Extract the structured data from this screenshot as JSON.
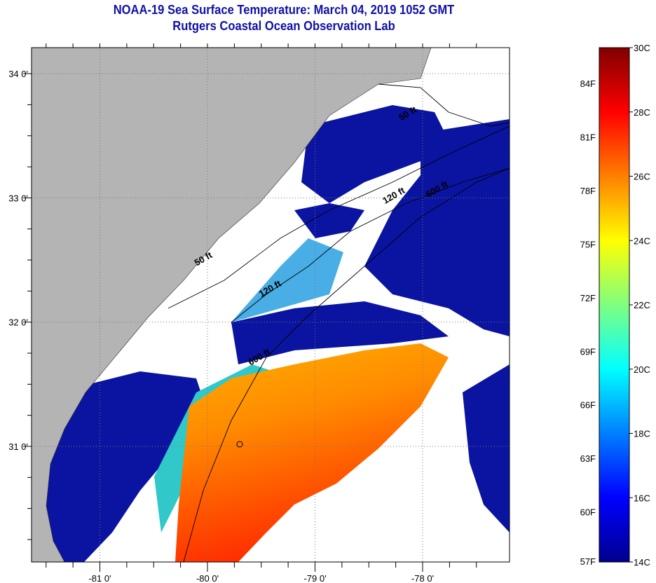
{
  "header": {
    "title": "NOAA-19 Sea Surface Temperature:  March 04, 2019 1052 GMT",
    "subtitle": "Rutgers Coastal Ocean Observation Lab"
  },
  "map": {
    "lon_range": [
      -81.64,
      -77.2
    ],
    "lat_range": [
      30.2,
      34.2
    ],
    "lon_ticks": [
      {
        "value": -81,
        "label": "-81 0'"
      },
      {
        "value": -80,
        "label": "-80 0'"
      },
      {
        "value": -79,
        "label": "-79 0'"
      },
      {
        "value": -78,
        "label": "-78 0'"
      }
    ],
    "lat_ticks": [
      {
        "value": 34,
        "label": "34 0'"
      },
      {
        "value": 33,
        "label": "33 0'"
      },
      {
        "value": 32,
        "label": "32 0'"
      },
      {
        "value": 31,
        "label": "31 0'"
      }
    ],
    "contour_labels": [
      {
        "text": "50 ft",
        "lon": -78.2,
        "lat": 33.62
      },
      {
        "text": "120 ft",
        "lon": -78.35,
        "lat": 32.95
      },
      {
        "text": "600 ft",
        "lon": -77.95,
        "lat": 33.0
      },
      {
        "text": "50 ft",
        "lon": -80.1,
        "lat": 32.45
      },
      {
        "text": "120 ft",
        "lon": -79.5,
        "lat": 32.2
      },
      {
        "text": "600 ft",
        "lon": -79.6,
        "lat": 31.65
      }
    ],
    "colors": {
      "land": "#b4b4b4",
      "cloud": "#ffffff",
      "cold": "#00008f",
      "warm": "#ff7a00"
    }
  },
  "colorbar": {
    "celsius_labels": [
      "30C",
      "28C",
      "26C",
      "24C",
      "22C",
      "20C",
      "18C",
      "16C",
      "14C"
    ],
    "fahrenheit_labels": [
      "84F",
      "81F",
      "78F",
      "75F",
      "72F",
      "69F",
      "66F",
      "63F",
      "60F",
      "57F"
    ],
    "range_c": [
      14,
      30
    ]
  }
}
